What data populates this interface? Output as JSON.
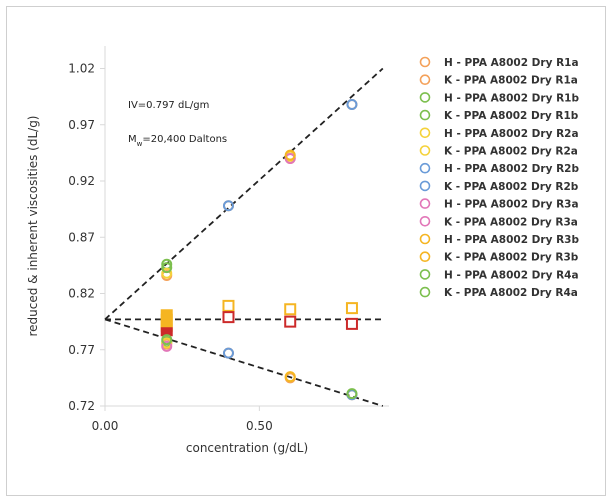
{
  "chart_data": {
    "type": "scatter",
    "xlabel": "concentration (g/dL)",
    "ylabel": "reduced & inherent viscosities (dL/g)",
    "xlim": [
      0.0,
      0.92
    ],
    "ylim": [
      0.72,
      1.04
    ],
    "x_ticks": [
      {
        "value": 0.0,
        "label": "0.00"
      },
      {
        "value": 0.5,
        "label": "0.50"
      }
    ],
    "y_ticks": [
      {
        "value": 0.72,
        "label": "0.72"
      },
      {
        "value": 0.77,
        "label": "0.77"
      },
      {
        "value": 0.82,
        "label": "0.82"
      },
      {
        "value": 0.87,
        "label": "0.87"
      },
      {
        "value": 0.92,
        "label": "0.92"
      },
      {
        "value": 0.97,
        "label": "0.97"
      },
      {
        "value": 1.02,
        "label": "1.02"
      }
    ],
    "annotations": [
      {
        "text": "IV=0.797 dL/gm"
      },
      {
        "text_parts": [
          "M",
          "w",
          "=20,400 Daltons"
        ]
      }
    ],
    "fit_lines": [
      {
        "x": [
          0.0,
          0.9
        ],
        "y": [
          0.797,
          1.02
        ]
      },
      {
        "x": [
          0.0,
          0.9
        ],
        "y": [
          0.797,
          0.72
        ]
      },
      {
        "x": [
          0.0,
          0.9
        ],
        "y": [
          0.797,
          0.797
        ]
      }
    ],
    "series": [
      {
        "name": "H - PPA A8002 Dry R1a",
        "color": "#f4a15a",
        "x": [
          0.2,
          0.4,
          0.6,
          0.8
        ],
        "y": [
          0.836,
          0.898,
          0.94,
          0.988
        ]
      },
      {
        "name": "K - PPA A8002 Dry R1a",
        "color": "#f4a15a",
        "x": [
          0.2,
          0.4,
          0.6,
          0.8
        ],
        "y": [
          0.775,
          0.767,
          0.745,
          0.73
        ]
      },
      {
        "name": "H - PPA A8002 Dry R1b",
        "color": "#7cbf4e",
        "x": [
          0.2
        ],
        "y": [
          0.846
        ]
      },
      {
        "name": "K - PPA A8002 Dry R1b",
        "color": "#7cbf4e",
        "x": [
          0.2
        ],
        "y": [
          0.777
        ]
      },
      {
        "name": "H - PPA A8002 Dry R2a",
        "color": "#f5d23a",
        "x": [
          0.2,
          0.6
        ],
        "y": [
          0.838,
          0.942
        ]
      },
      {
        "name": "K - PPA A8002 Dry R2a",
        "color": "#f5d23a",
        "x": [
          0.2,
          0.6
        ],
        "y": [
          0.776,
          0.746
        ]
      },
      {
        "name": "H - PPA A8002 Dry R2b",
        "color": "#6a9bd8",
        "x": [
          0.4,
          0.8
        ],
        "y": [
          0.898,
          0.988
        ]
      },
      {
        "name": "K - PPA A8002 Dry R2b",
        "color": "#6a9bd8",
        "x": [
          0.4,
          0.8
        ],
        "y": [
          0.767,
          0.73
        ]
      },
      {
        "name": "H - PPA A8002 Dry R3a",
        "color": "#e277b8",
        "x": [
          0.6
        ],
        "y": [
          0.94
        ]
      },
      {
        "name": "K - PPA A8002 Dry R3a",
        "color": "#e277b8",
        "x": [
          0.2
        ],
        "y": [
          0.773
        ]
      },
      {
        "name": "H - PPA A8002 Dry R3b",
        "color": "#f5b522",
        "x": [
          0.6
        ],
        "y": [
          0.943
        ]
      },
      {
        "name": "K - PPA A8002 Dry R3b",
        "color": "#f5b522",
        "x": [
          0.6
        ],
        "y": [
          0.746
        ]
      },
      {
        "name": "H - PPA A8002 Dry R4a",
        "color": "#7cbf4e",
        "x": [
          0.2
        ],
        "y": [
          0.843
        ]
      },
      {
        "name": "K - PPA A8002 Dry R4a",
        "color": "#7cbf4e",
        "x": [
          0.2,
          0.8
        ],
        "y": [
          0.779,
          0.731
        ]
      }
    ],
    "square_markers": [
      {
        "color": "#f5b522",
        "filled": true,
        "x": [
          0.2,
          0.2,
          0.2,
          0.2
        ],
        "y": [
          0.802,
          0.798,
          0.794,
          0.79
        ]
      },
      {
        "color": "#cc2a2a",
        "filled": true,
        "x": [
          0.2
        ],
        "y": [
          0.786
        ]
      },
      {
        "color": "#f5b522",
        "filled": false,
        "x": [
          0.4,
          0.6,
          0.8
        ],
        "y": [
          0.809,
          0.806,
          0.807
        ]
      },
      {
        "color": "#cc2a2a",
        "filled": false,
        "x": [
          0.4,
          0.6,
          0.8
        ],
        "y": [
          0.799,
          0.795,
          0.793
        ]
      }
    ],
    "legend_position": "right",
    "grid": false
  }
}
